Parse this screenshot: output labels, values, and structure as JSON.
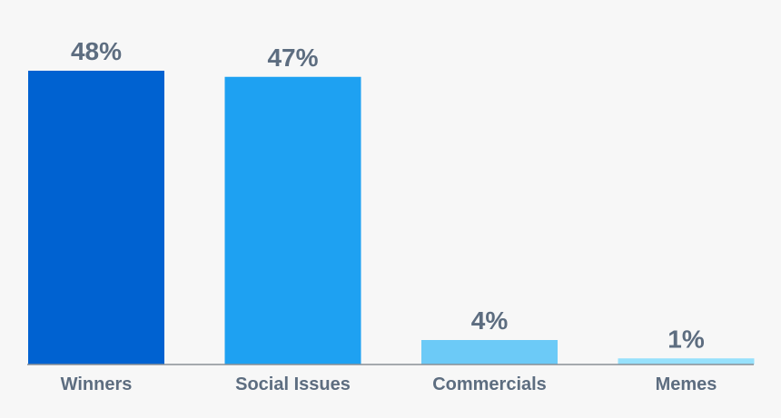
{
  "chart_data": {
    "type": "bar",
    "categories": [
      "Winners",
      "Social Issues",
      "Commercials",
      "Memes"
    ],
    "values": [
      48,
      47,
      4,
      1
    ],
    "value_labels": [
      "48%",
      "47%",
      "4%",
      "1%"
    ],
    "colors": [
      "#0062d1",
      "#1ea1f2",
      "#6ccaf7",
      "#97e1fc"
    ],
    "title": "",
    "xlabel": "",
    "ylabel": "",
    "ylim": [
      0,
      50
    ],
    "grid": false,
    "legend": "none"
  }
}
